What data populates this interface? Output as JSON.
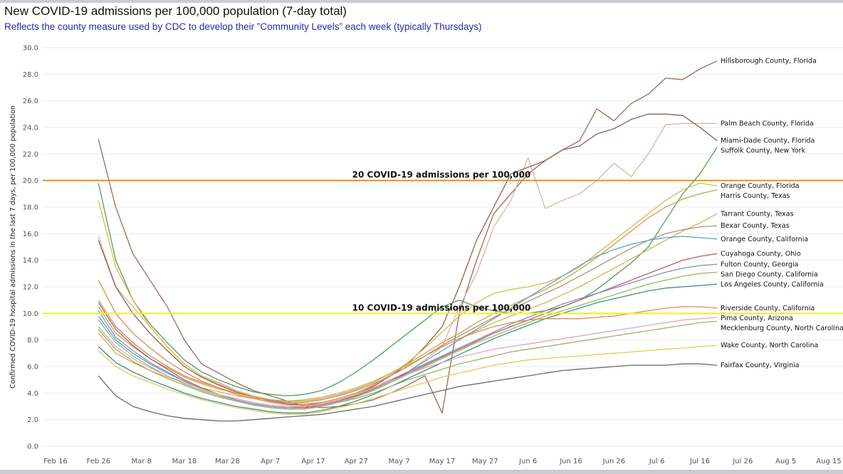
{
  "chart_data": {
    "type": "line",
    "title": "New COVID-19 admissions per 100,000 population (7-day total)",
    "subtitle": "Reflects the county measure used by CDC to develop their ”Community Levels” each week (typically Thursdays)",
    "ylabel": "Confirmed COVID-19 hospital admissions in the last 7 days, per 100,000 population",
    "xlabel": "",
    "ylim": [
      0,
      30
    ],
    "yticks": [
      "0.0",
      "2.0",
      "4.0",
      "6.0",
      "8.0",
      "10.0",
      "12.0",
      "14.0",
      "16.0",
      "18.0",
      "20.0",
      "22.0",
      "24.0",
      "26.0",
      "28.0",
      "30.0"
    ],
    "xticks": [
      "Feb 16",
      "Feb 26",
      "Mar 8",
      "Mar 18",
      "Mar 28",
      "Apr 7",
      "Apr 17",
      "Apr 27",
      "May 7",
      "May 17",
      "May 27",
      "Jun 6",
      "Jun 16",
      "Jun 26",
      "Jul 6",
      "Jul 16",
      "Jul 26",
      "Aug 5",
      "Aug 15"
    ],
    "x_days": [
      0,
      10,
      20,
      30,
      40,
      50,
      60,
      70,
      80,
      90,
      100,
      110,
      120,
      130,
      140,
      150,
      160,
      170,
      180
    ],
    "reference_lines": [
      {
        "value": 20,
        "label": "20 COVID-19 admissions per 100,000",
        "color": "#e8900e"
      },
      {
        "value": 10,
        "label": "10 COVID-19 admissions per 100,000",
        "color": "#f2ef1c"
      }
    ],
    "x": [
      10,
      14,
      18,
      22,
      26,
      30,
      34,
      38,
      42,
      46,
      50,
      54,
      58,
      62,
      66,
      70,
      74,
      78,
      82,
      86,
      90,
      94,
      98,
      102,
      106,
      110,
      114,
      118,
      122,
      126,
      130,
      134,
      138,
      142,
      146,
      150,
      154
    ],
    "series": [
      {
        "name": "Hillsborough County, Florida",
        "color": "#9a6a5b",
        "values": [
          23.1,
          18.0,
          14.5,
          12.5,
          10.5,
          8.0,
          6.2,
          5.5,
          4.8,
          4.2,
          3.8,
          3.4,
          3.0,
          2.9,
          3.0,
          3.2,
          3.5,
          4.0,
          4.6,
          5.3,
          2.5,
          10.0,
          14.0,
          17.5,
          19.0,
          20.5,
          21.5,
          22.3,
          23.0,
          25.4,
          24.5,
          25.8,
          26.5,
          27.7,
          27.6,
          28.4,
          29.0
        ]
      },
      {
        "name": "Palm Beach County, Florida",
        "color": "#d9b3a6",
        "values": [
          15.8,
          12.0,
          10.5,
          9.0,
          7.5,
          6.2,
          5.3,
          4.8,
          4.2,
          3.8,
          3.5,
          3.2,
          3.1,
          3.2,
          3.5,
          3.8,
          4.2,
          4.8,
          5.6,
          6.5,
          7.5,
          10.5,
          13.0,
          16.5,
          18.5,
          21.7,
          17.9,
          18.5,
          19.0,
          20.0,
          21.3,
          20.3,
          22.0,
          24.2,
          24.3,
          24.3,
          24.3
        ]
      },
      {
        "name": "Miami-Dade County, Florida",
        "color": "#8c6050",
        "values": [
          15.5,
          12.0,
          10.0,
          8.5,
          7.2,
          6.0,
          5.2,
          4.6,
          4.1,
          3.7,
          3.4,
          3.2,
          3.1,
          3.2,
          3.5,
          3.9,
          4.5,
          5.3,
          6.2,
          7.5,
          9.0,
          12.0,
          15.5,
          18.0,
          20.5,
          21.0,
          21.5,
          22.3,
          22.6,
          23.5,
          23.9,
          24.6,
          25.0,
          25.0,
          24.9,
          24.0,
          23.0
        ]
      },
      {
        "name": "Suffolk County, New York",
        "color": "#4aa358",
        "values": [
          19.8,
          14.0,
          11.0,
          9.2,
          7.8,
          6.5,
          5.6,
          5.0,
          4.5,
          4.1,
          3.9,
          3.8,
          3.9,
          4.2,
          4.8,
          5.6,
          6.5,
          7.5,
          8.5,
          9.5,
          10.5,
          11.0,
          10.5,
          10.2,
          10.0,
          10.0,
          10.2,
          10.5,
          11.0,
          11.8,
          12.8,
          13.8,
          15.0,
          17.0,
          19.0,
          20.5,
          22.5
        ]
      },
      {
        "name": "Orange County, Florida",
        "color": "#e2b64a",
        "values": [
          18.5,
          13.5,
          11.0,
          9.0,
          7.5,
          6.2,
          5.3,
          4.7,
          4.2,
          3.8,
          3.5,
          3.3,
          3.2,
          3.3,
          3.6,
          4.0,
          4.6,
          5.4,
          6.3,
          7.4,
          8.6,
          9.8,
          10.8,
          11.5,
          11.8,
          12.0,
          12.3,
          12.8,
          13.5,
          14.5,
          15.5,
          16.5,
          17.5,
          18.5,
          19.3,
          19.8,
          19.6
        ]
      },
      {
        "name": "Harris County, Texas",
        "color": "#c9a24a",
        "values": [
          10.5,
          8.5,
          7.5,
          6.6,
          5.9,
          5.2,
          4.7,
          4.3,
          4.0,
          3.7,
          3.5,
          3.4,
          3.4,
          3.6,
          3.9,
          4.3,
          4.8,
          5.5,
          6.2,
          7.0,
          7.8,
          8.5,
          9.3,
          10.0,
          10.6,
          11.2,
          11.8,
          12.5,
          13.3,
          14.2,
          15.2,
          16.2,
          17.2,
          18.0,
          18.6,
          19.0,
          19.3
        ]
      },
      {
        "name": "Tarrant County, Texas",
        "color": "#d4b25a",
        "values": [
          8.5,
          7.0,
          6.3,
          5.7,
          5.2,
          4.8,
          4.4,
          4.1,
          3.8,
          3.6,
          3.5,
          3.4,
          3.5,
          3.7,
          4.0,
          4.4,
          4.9,
          5.5,
          6.1,
          6.8,
          7.5,
          8.1,
          8.7,
          9.3,
          9.8,
          10.3,
          10.8,
          11.4,
          12.0,
          12.7,
          13.4,
          14.1,
          14.8,
          15.5,
          16.2,
          16.8,
          17.5
        ]
      },
      {
        "name": "Bexar County, Texas",
        "color": "#b8926e",
        "values": [
          11.0,
          9.0,
          7.8,
          6.8,
          6.0,
          5.3,
          4.8,
          4.4,
          4.0,
          3.7,
          3.5,
          3.3,
          3.3,
          3.5,
          3.8,
          4.2,
          4.7,
          5.3,
          6.0,
          6.8,
          7.6,
          8.3,
          9.0,
          9.7,
          10.3,
          10.9,
          11.5,
          12.1,
          12.8,
          13.5,
          14.2,
          14.9,
          15.5,
          16.0,
          16.3,
          16.5,
          16.6
        ]
      },
      {
        "name": "Orange County, California",
        "color": "#5aa6c8",
        "values": [
          10.2,
          8.2,
          7.2,
          6.3,
          5.6,
          4.9,
          4.3,
          3.9,
          3.5,
          3.2,
          3.0,
          2.9,
          2.9,
          3.1,
          3.4,
          3.8,
          4.3,
          4.9,
          5.6,
          6.4,
          7.2,
          8.0,
          8.8,
          9.6,
          10.4,
          11.2,
          12.0,
          12.8,
          13.6,
          14.3,
          14.8,
          15.2,
          15.5,
          15.7,
          15.8,
          15.7,
          15.6
        ]
      },
      {
        "name": "Cuyahoga County, Ohio",
        "color": "#c25a5a",
        "values": [
          10.8,
          8.8,
          7.6,
          6.6,
          5.8,
          5.0,
          4.4,
          3.9,
          3.5,
          3.2,
          3.0,
          2.9,
          2.9,
          3.1,
          3.4,
          3.8,
          4.3,
          4.9,
          5.5,
          6.1,
          6.7,
          7.3,
          7.9,
          8.5,
          9.0,
          9.5,
          10.0,
          10.5,
          11.0,
          11.5,
          12.0,
          12.5,
          13.0,
          13.5,
          14.0,
          14.3,
          14.5
        ]
      },
      {
        "name": "Fulton County, Georgia",
        "color": "#7a8fcc",
        "values": [
          9.8,
          8.0,
          7.0,
          6.2,
          5.5,
          4.9,
          4.3,
          3.9,
          3.5,
          3.2,
          3.0,
          2.9,
          3.0,
          3.2,
          3.5,
          3.9,
          4.4,
          5.0,
          5.6,
          6.2,
          6.8,
          7.4,
          8.0,
          8.6,
          9.2,
          9.7,
          10.2,
          10.7,
          11.1,
          11.5,
          11.9,
          12.3,
          12.7,
          13.1,
          13.4,
          13.6,
          13.7
        ]
      },
      {
        "name": "San Diego County, California",
        "color": "#8fbf60",
        "values": [
          9.5,
          7.8,
          6.8,
          6.0,
          5.3,
          4.7,
          4.2,
          3.8,
          3.4,
          3.1,
          2.9,
          2.8,
          2.8,
          3.0,
          3.3,
          3.7,
          4.2,
          4.8,
          5.4,
          6.0,
          6.6,
          7.2,
          7.8,
          8.3,
          8.8,
          9.3,
          9.8,
          10.2,
          10.6,
          11.0,
          11.4,
          11.8,
          12.2,
          12.5,
          12.8,
          13.0,
          13.1
        ]
      },
      {
        "name": "Los Angeles County, California",
        "color": "#3c8e8a",
        "values": [
          7.5,
          6.3,
          5.6,
          5.0,
          4.5,
          4.0,
          3.6,
          3.3,
          3.0,
          2.8,
          2.6,
          2.5,
          2.5,
          2.7,
          3.0,
          3.4,
          3.9,
          4.5,
          5.1,
          5.7,
          6.3,
          6.9,
          7.5,
          8.1,
          8.6,
          9.1,
          9.6,
          10.0,
          10.4,
          10.8,
          11.1,
          11.4,
          11.7,
          11.9,
          12.0,
          12.1,
          12.2
        ]
      },
      {
        "name": "Riverside County, California",
        "color": "#e38a4a",
        "values": [
          12.5,
          10.0,
          8.5,
          7.4,
          6.4,
          5.6,
          4.9,
          4.4,
          3.9,
          3.6,
          3.3,
          3.1,
          3.1,
          3.3,
          3.6,
          4.0,
          4.6,
          5.3,
          6.0,
          6.8,
          7.5,
          8.1,
          8.6,
          9.0,
          9.3,
          9.5,
          9.6,
          9.6,
          9.6,
          9.7,
          9.8,
          10.0,
          10.2,
          10.4,
          10.5,
          10.5,
          10.4
        ]
      },
      {
        "name": "Pima County, Arizona",
        "color": "#e8a3b8",
        "values": [
          9.0,
          7.5,
          6.6,
          5.9,
          5.3,
          4.8,
          4.3,
          3.9,
          3.6,
          3.3,
          3.1,
          3.0,
          3.0,
          3.2,
          3.5,
          3.9,
          4.4,
          4.9,
          5.4,
          5.9,
          6.3,
          6.7,
          7.0,
          7.3,
          7.5,
          7.7,
          7.9,
          8.1,
          8.3,
          8.5,
          8.7,
          8.9,
          9.1,
          9.3,
          9.5,
          9.6,
          9.7
        ]
      },
      {
        "name": "Mecklenburg County, North Carolina",
        "color": "#9ab070",
        "values": [
          8.8,
          7.3,
          6.4,
          5.7,
          5.1,
          4.6,
          4.1,
          3.7,
          3.4,
          3.1,
          2.9,
          2.8,
          2.8,
          3.0,
          3.3,
          3.6,
          4.0,
          4.5,
          5.0,
          5.4,
          5.8,
          6.2,
          6.5,
          6.8,
          7.1,
          7.3,
          7.5,
          7.7,
          7.9,
          8.1,
          8.3,
          8.5,
          8.7,
          8.9,
          9.1,
          9.3,
          9.4
        ]
      },
      {
        "name": "Wake County, North Carolina",
        "color": "#e6c858",
        "values": [
          7.2,
          6.0,
          5.3,
          4.8,
          4.3,
          3.9,
          3.5,
          3.2,
          2.9,
          2.7,
          2.5,
          2.4,
          2.4,
          2.6,
          2.9,
          3.2,
          3.6,
          4.0,
          4.4,
          4.8,
          5.2,
          5.5,
          5.8,
          6.1,
          6.3,
          6.5,
          6.6,
          6.7,
          6.8,
          6.9,
          7.0,
          7.1,
          7.2,
          7.3,
          7.4,
          7.5,
          7.6
        ]
      },
      {
        "name": "Fairfax County, Virginia",
        "color": "#6a6a6a",
        "values": [
          5.3,
          3.8,
          3.0,
          2.6,
          2.3,
          2.1,
          2.0,
          1.9,
          1.9,
          2.0,
          2.1,
          2.2,
          2.3,
          2.4,
          2.6,
          2.8,
          3.0,
          3.3,
          3.6,
          3.9,
          4.2,
          4.5,
          4.7,
          4.9,
          5.1,
          5.3,
          5.5,
          5.7,
          5.8,
          5.9,
          6.0,
          6.1,
          6.1,
          6.1,
          6.2,
          6.2,
          6.1
        ]
      }
    ]
  }
}
